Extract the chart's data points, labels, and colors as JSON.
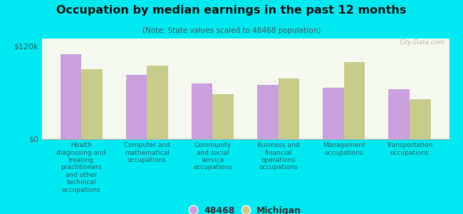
{
  "title": "Occupation by median earnings in the past 12 months",
  "subtitle": "(Note: State values scaled to 48468 population)",
  "categories": [
    "Health\ndiagnosing and\ntreating\npractitioners\nand other\ntechnical\noccupations",
    "Computer and\nmathematical\noccupations",
    "Community\nand social\nservice\noccupations",
    "Business and\nfinancial\noperations\noccupations",
    "Management\noccupations",
    "Transportation\noccupations"
  ],
  "values_48468": [
    110000,
    83000,
    72000,
    70000,
    66000,
    65000
  ],
  "values_michigan": [
    90000,
    95000,
    58000,
    78000,
    100000,
    52000
  ],
  "color_48468": "#c9a0dc",
  "color_michigan": "#c8cc8a",
  "background_color": "#00e8f0",
  "plot_bg_top": "#e8f0d8",
  "plot_bg_bottom": "#f5f8ee",
  "ylim": [
    0,
    130000
  ],
  "yticks": [
    0,
    120000
  ],
  "ytick_labels": [
    "$0",
    "$120k"
  ],
  "legend_label_48468": "48468",
  "legend_label_michigan": "Michigan",
  "watermark": "City-Data.com"
}
